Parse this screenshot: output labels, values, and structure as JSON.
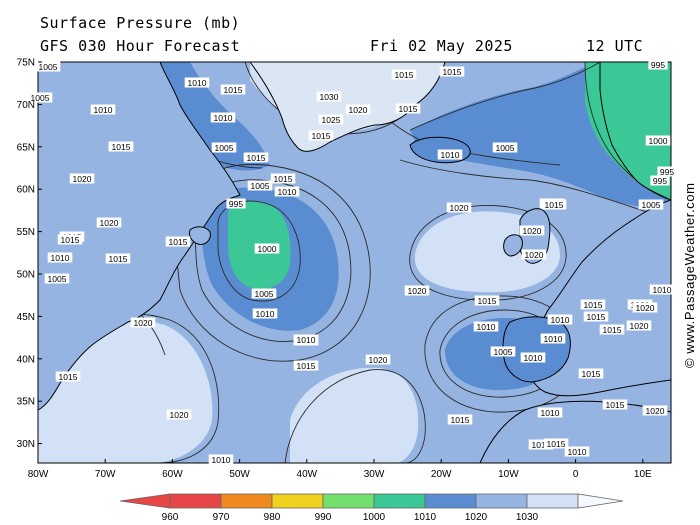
{
  "header": {
    "title": "Surface Pressure (mb)",
    "subtitle": "GFS 030 Hour Forecast",
    "date": "Fri 02 May 2025",
    "time": "12 UTC"
  },
  "watermark": "© www.PassageWeather.com",
  "axes": {
    "lat_labels": [
      "75N",
      "70N",
      "65N",
      "60N",
      "55N",
      "50N",
      "45N",
      "40N",
      "35N",
      "30N"
    ],
    "lon_labels": [
      "80W",
      "70W",
      "60W",
      "50W",
      "40W",
      "30W",
      "20W",
      "10W",
      "0",
      "10E"
    ]
  },
  "colorbar": {
    "ticks": [
      "960",
      "970",
      "980",
      "990",
      "1000",
      "1010",
      "1020",
      "1030"
    ],
    "colors": [
      "#e84646",
      "#f08a1e",
      "#f0d21e",
      "#73e06e",
      "#3cc896",
      "#5a8cd2",
      "#96b4e1",
      "#d2e1f5"
    ]
  },
  "isobar_labels": [
    {
      "text": "1005"
    },
    {
      "text": "1010"
    },
    {
      "text": "1015"
    },
    {
      "text": "1010"
    },
    {
      "text": "1015"
    },
    {
      "text": "1030"
    },
    {
      "text": "1015"
    },
    {
      "text": "1015"
    },
    {
      "text": "1020"
    },
    {
      "text": "1025"
    },
    {
      "text": "1015"
    },
    {
      "text": "1015"
    },
    {
      "text": "1010"
    },
    {
      "text": "1005"
    },
    {
      "text": "1015"
    },
    {
      "text": "1010"
    },
    {
      "text": "1005"
    },
    {
      "text": "995"
    },
    {
      "text": "1000"
    },
    {
      "text": "1005"
    },
    {
      "text": "1010"
    },
    {
      "text": "1015"
    },
    {
      "text": "995"
    },
    {
      "text": "1000"
    },
    {
      "text": "1005"
    },
    {
      "text": "1010"
    },
    {
      "text": "1015"
    },
    {
      "text": "1020"
    },
    {
      "text": "1020"
    },
    {
      "text": "1015"
    },
    {
      "text": "1015"
    },
    {
      "text": "1015"
    },
    {
      "text": "1010"
    },
    {
      "text": "1005"
    },
    {
      "text": "1020"
    },
    {
      "text": "1020"
    },
    {
      "text": "1020"
    },
    {
      "text": "1015"
    },
    {
      "text": "1015"
    },
    {
      "text": "1020"
    },
    {
      "text": "1015"
    },
    {
      "text": "1010"
    },
    {
      "text": "1005"
    },
    {
      "text": "1010"
    },
    {
      "text": "1015"
    },
    {
      "text": "1010"
    },
    {
      "text": "1010"
    },
    {
      "text": "1015"
    },
    {
      "text": "1020"
    },
    {
      "text": "1020"
    },
    {
      "text": "1015"
    },
    {
      "text": "1010"
    },
    {
      "text": "1010"
    },
    {
      "text": "1015"
    },
    {
      "text": "1020"
    },
    {
      "text": "1020"
    },
    {
      "text": "1015"
    },
    {
      "text": "1010"
    },
    {
      "text": "1015"
    },
    {
      "text": "1010"
    },
    {
      "text": "1015"
    },
    {
      "text": "995"
    },
    {
      "text": "995"
    },
    {
      "text": "1005"
    },
    {
      "text": "1015"
    },
    {
      "text": "1005"
    },
    {
      "text": "1010"
    },
    {
      "text": "1015"
    },
    {
      "text": "1020"
    },
    {
      "text": "1020"
    },
    {
      "text": "1020"
    },
    {
      "text": "1010"
    },
    {
      "text": "1015"
    },
    {
      "text": "1015"
    }
  ]
}
